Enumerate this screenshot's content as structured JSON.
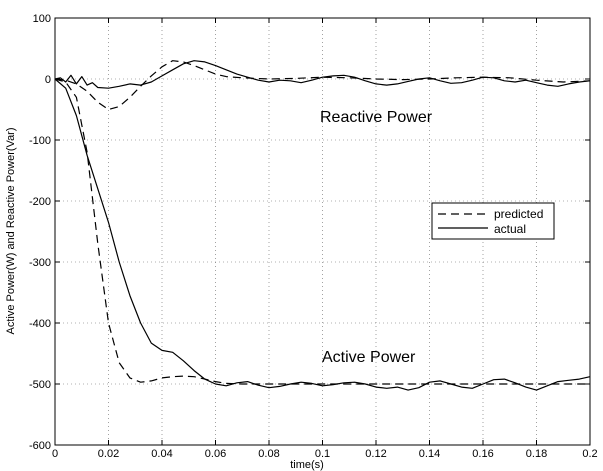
{
  "chart_data": {
    "type": "line",
    "title": "",
    "xlabel": "time(s)",
    "ylabel": "Active Power(W) and Reactive Power(Var)",
    "xlim": [
      0,
      0.2
    ],
    "ylim": [
      -600,
      100
    ],
    "x_ticks": [
      "0",
      "0.02",
      "0.04",
      "0.06",
      "0.08",
      "0.1",
      "0.12",
      "0.14",
      "0.16",
      "0.18",
      "0.2"
    ],
    "y_ticks": [
      "100",
      "0",
      "-100",
      "-200",
      "-300",
      "-400",
      "-500",
      "-600"
    ],
    "grid": true,
    "legend_position": "right",
    "annotations": [
      "Reactive Power",
      "Active Power"
    ],
    "series": [
      {
        "name": "predicted",
        "group": "Active Power",
        "style": "dashed",
        "points": [
          [
            0,
            0
          ],
          [
            0.004,
            -5
          ],
          [
            0.008,
            -30
          ],
          [
            0.012,
            -120
          ],
          [
            0.016,
            -270
          ],
          [
            0.02,
            -400
          ],
          [
            0.024,
            -465
          ],
          [
            0.028,
            -490
          ],
          [
            0.032,
            -497
          ],
          [
            0.036,
            -495
          ],
          [
            0.04,
            -490
          ],
          [
            0.044,
            -488
          ],
          [
            0.048,
            -487
          ],
          [
            0.052,
            -488
          ],
          [
            0.056,
            -492
          ],
          [
            0.06,
            -496
          ],
          [
            0.064,
            -499
          ],
          [
            0.07,
            -500
          ],
          [
            0.08,
            -500
          ],
          [
            0.09,
            -500
          ],
          [
            0.1,
            -500
          ],
          [
            0.12,
            -500
          ],
          [
            0.14,
            -500
          ],
          [
            0.16,
            -500
          ],
          [
            0.18,
            -500
          ],
          [
            0.2,
            -500
          ]
        ]
      },
      {
        "name": "actual",
        "group": "Active Power",
        "style": "solid",
        "points": [
          [
            0,
            0
          ],
          [
            0.004,
            -15
          ],
          [
            0.008,
            -60
          ],
          [
            0.012,
            -125
          ],
          [
            0.016,
            -180
          ],
          [
            0.02,
            -235
          ],
          [
            0.024,
            -300
          ],
          [
            0.028,
            -355
          ],
          [
            0.032,
            -400
          ],
          [
            0.036,
            -433
          ],
          [
            0.04,
            -445
          ],
          [
            0.044,
            -448
          ],
          [
            0.048,
            -462
          ],
          [
            0.052,
            -478
          ],
          [
            0.056,
            -492
          ],
          [
            0.06,
            -500
          ],
          [
            0.064,
            -503
          ],
          [
            0.068,
            -498
          ],
          [
            0.072,
            -496
          ],
          [
            0.076,
            -502
          ],
          [
            0.08,
            -506
          ],
          [
            0.084,
            -504
          ],
          [
            0.088,
            -500
          ],
          [
            0.092,
            -497
          ],
          [
            0.096,
            -499
          ],
          [
            0.1,
            -503
          ],
          [
            0.104,
            -501
          ],
          [
            0.108,
            -498
          ],
          [
            0.112,
            -497
          ],
          [
            0.116,
            -500
          ],
          [
            0.12,
            -505
          ],
          [
            0.124,
            -507
          ],
          [
            0.128,
            -505
          ],
          [
            0.132,
            -510
          ],
          [
            0.136,
            -506
          ],
          [
            0.14,
            -497
          ],
          [
            0.144,
            -495
          ],
          [
            0.148,
            -500
          ],
          [
            0.152,
            -505
          ],
          [
            0.156,
            -507
          ],
          [
            0.16,
            -500
          ],
          [
            0.164,
            -493
          ],
          [
            0.168,
            -492
          ],
          [
            0.172,
            -498
          ],
          [
            0.176,
            -505
          ],
          [
            0.18,
            -510
          ],
          [
            0.184,
            -503
          ],
          [
            0.188,
            -496
          ],
          [
            0.192,
            -494
          ],
          [
            0.196,
            -492
          ],
          [
            0.2,
            -488
          ]
        ]
      },
      {
        "name": "predicted",
        "group": "Reactive Power",
        "style": "dashed",
        "points": [
          [
            0,
            0
          ],
          [
            0.004,
            -2
          ],
          [
            0.008,
            -8
          ],
          [
            0.012,
            -20
          ],
          [
            0.016,
            -38
          ],
          [
            0.02,
            -50
          ],
          [
            0.024,
            -45
          ],
          [
            0.028,
            -30
          ],
          [
            0.032,
            -12
          ],
          [
            0.036,
            5
          ],
          [
            0.04,
            20
          ],
          [
            0.044,
            30
          ],
          [
            0.048,
            28
          ],
          [
            0.052,
            22
          ],
          [
            0.056,
            15
          ],
          [
            0.06,
            8
          ],
          [
            0.064,
            4
          ],
          [
            0.07,
            2
          ],
          [
            0.08,
            0
          ],
          [
            0.09,
            1
          ],
          [
            0.1,
            3
          ],
          [
            0.11,
            2
          ],
          [
            0.12,
            0
          ],
          [
            0.13,
            -1
          ],
          [
            0.14,
            0
          ],
          [
            0.15,
            2
          ],
          [
            0.16,
            3
          ],
          [
            0.17,
            2
          ],
          [
            0.18,
            -2
          ],
          [
            0.19,
            -5
          ],
          [
            0.2,
            -3
          ]
        ]
      },
      {
        "name": "actual",
        "group": "Reactive Power",
        "style": "solid",
        "points": [
          [
            0,
            0
          ],
          [
            0.002,
            2
          ],
          [
            0.004,
            -5
          ],
          [
            0.006,
            6
          ],
          [
            0.008,
            -8
          ],
          [
            0.01,
            4
          ],
          [
            0.012,
            -10
          ],
          [
            0.014,
            -6
          ],
          [
            0.016,
            -14
          ],
          [
            0.02,
            -15
          ],
          [
            0.024,
            -12
          ],
          [
            0.028,
            -8
          ],
          [
            0.032,
            -10
          ],
          [
            0.036,
            -5
          ],
          [
            0.04,
            5
          ],
          [
            0.044,
            15
          ],
          [
            0.048,
            25
          ],
          [
            0.052,
            30
          ],
          [
            0.056,
            28
          ],
          [
            0.06,
            22
          ],
          [
            0.064,
            15
          ],
          [
            0.068,
            8
          ],
          [
            0.072,
            3
          ],
          [
            0.076,
            -2
          ],
          [
            0.08,
            -5
          ],
          [
            0.084,
            -2
          ],
          [
            0.088,
            -3
          ],
          [
            0.092,
            -6
          ],
          [
            0.096,
            -2
          ],
          [
            0.1,
            3
          ],
          [
            0.104,
            5
          ],
          [
            0.108,
            6
          ],
          [
            0.112,
            3
          ],
          [
            0.116,
            -3
          ],
          [
            0.12,
            -8
          ],
          [
            0.124,
            -10
          ],
          [
            0.128,
            -8
          ],
          [
            0.132,
            -4
          ],
          [
            0.136,
            0
          ],
          [
            0.14,
            2
          ],
          [
            0.144,
            -3
          ],
          [
            0.148,
            -7
          ],
          [
            0.152,
            -6
          ],
          [
            0.156,
            -2
          ],
          [
            0.16,
            3
          ],
          [
            0.164,
            2
          ],
          [
            0.168,
            -3
          ],
          [
            0.172,
            -5
          ],
          [
            0.176,
            -2
          ],
          [
            0.18,
            -6
          ],
          [
            0.184,
            -10
          ],
          [
            0.188,
            -12
          ],
          [
            0.192,
            -8
          ],
          [
            0.196,
            -5
          ],
          [
            0.2,
            -3
          ]
        ]
      }
    ],
    "legend": [
      {
        "label": "predicted",
        "style": "dashed"
      },
      {
        "label": "actual",
        "style": "solid"
      }
    ]
  }
}
